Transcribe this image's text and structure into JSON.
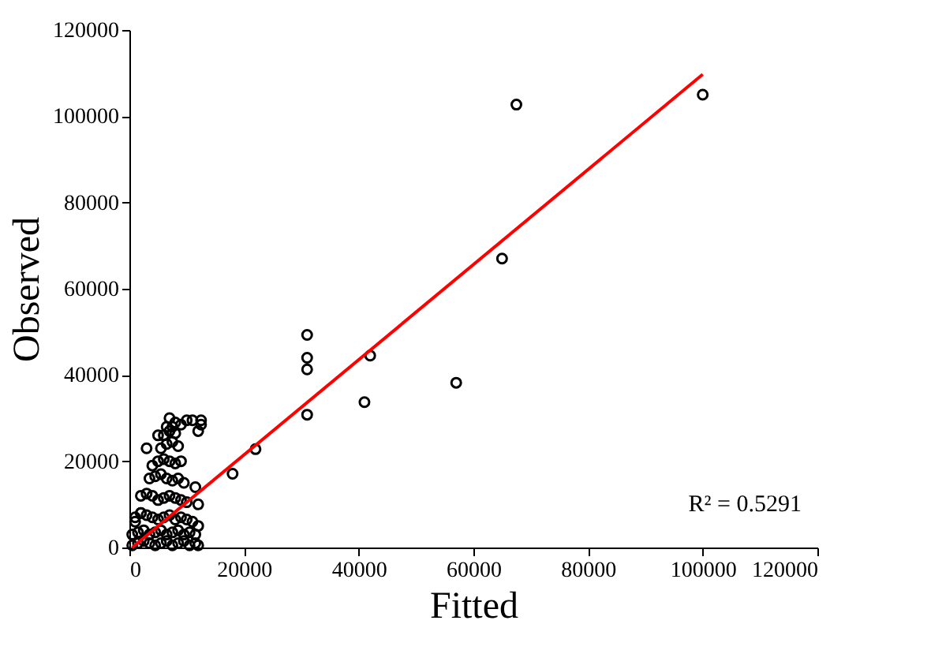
{
  "chart_data": {
    "type": "scatter",
    "xlabel": "Fitted",
    "ylabel": "Observed",
    "xlim": [
      0,
      120000
    ],
    "ylim": [
      0,
      120000
    ],
    "xticks": [
      0,
      20000,
      40000,
      60000,
      80000,
      100000,
      120000
    ],
    "yticks": [
      0,
      20000,
      40000,
      60000,
      80000,
      100000,
      120000
    ],
    "grid": false,
    "marker": "circle",
    "annotations": [
      "R² = 0.5291"
    ],
    "series": [
      {
        "color": "#000000",
        "x": [
          100000,
          67500,
          65000,
          57000,
          42000,
          41000,
          31000,
          31000,
          31000,
          31000,
          22000,
          18000,
          12500,
          12500,
          12000,
          11000,
          10000,
          9000,
          8000,
          7000,
          6500,
          5000,
          3000,
          2000,
          1000,
          500,
          1500,
          2500,
          3500,
          4500,
          5500,
          6500,
          7500,
          8500,
          9500,
          10500,
          11500,
          12000,
          500,
          1500,
          2500,
          3500,
          4500,
          5500,
          6500,
          7500,
          8500,
          9500,
          10500,
          11500,
          1000,
          2000,
          3000,
          4000,
          5000,
          6000,
          7000,
          8000,
          9000,
          10000,
          11000,
          2000,
          3000,
          4000,
          5000,
          6000,
          7000,
          8000,
          9000,
          10000,
          3500,
          4500,
          5500,
          6500,
          7500,
          8500,
          9500,
          4000,
          5000,
          6000,
          7000,
          8000,
          9000,
          5500,
          6500,
          7500,
          8500,
          6000,
          7000,
          8000,
          7500,
          12000,
          11500,
          12000
        ],
        "values": [
          105000,
          102700,
          67000,
          38200,
          44500,
          33700,
          49300,
          44000,
          41300,
          30800,
          22800,
          17100,
          29500,
          28500,
          27000,
          29500,
          29500,
          28500,
          29000,
          30000,
          28000,
          26000,
          23000,
          8000,
          6000,
          500,
          1000,
          1500,
          1000,
          500,
          1000,
          1500,
          500,
          1000,
          1500,
          500,
          1000,
          500,
          3000,
          3500,
          4000,
          3000,
          3500,
          4000,
          3000,
          3500,
          4000,
          3000,
          3500,
          3000,
          7000,
          8000,
          7500,
          7000,
          6500,
          7000,
          7500,
          6500,
          7000,
          6500,
          6000,
          12000,
          12500,
          12000,
          11000,
          11500,
          12000,
          11500,
          11000,
          10500,
          16000,
          16500,
          17000,
          16000,
          15500,
          16000,
          15000,
          19000,
          20000,
          20500,
          20000,
          19500,
          20000,
          23000,
          24000,
          24500,
          23500,
          26000,
          27000,
          26500,
          28000,
          10000,
          14000,
          5000
        ]
      },
      {
        "type": "line",
        "marker": "none",
        "color": "#ff0000",
        "line_style": "solid",
        "x": [
          500,
          100000
        ],
        "values": [
          0,
          109700
        ]
      }
    ]
  }
}
